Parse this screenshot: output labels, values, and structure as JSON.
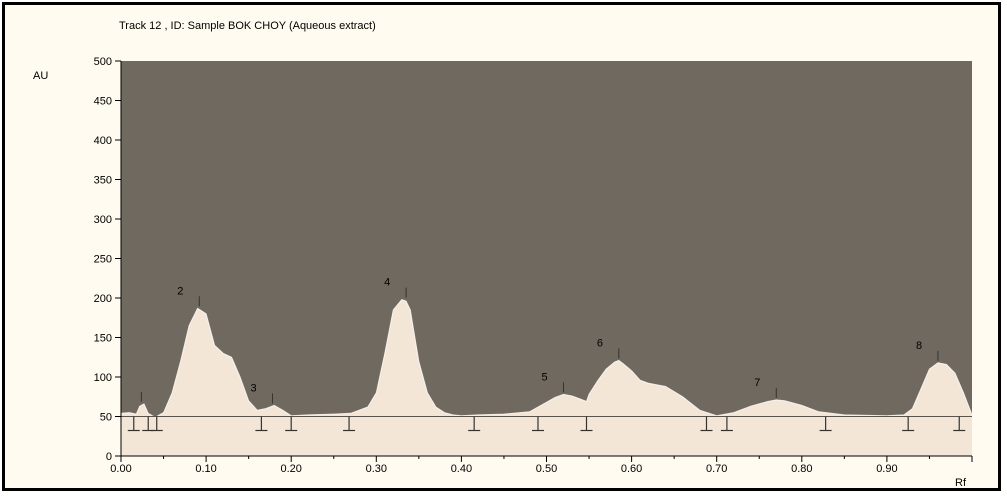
{
  "chart_data": {
    "type": "area",
    "title": "Track  12 , ID: Sample BOK CHOY (Aqueous extract)",
    "ylabel": "AU",
    "xlabel": "Rf",
    "xlim": [
      0.0,
      1.0
    ],
    "ylim": [
      0,
      500
    ],
    "x_ticks": [
      "0.00",
      "0.10",
      "0.20",
      "0.30",
      "0.40",
      "0.50",
      "0.60",
      "0.70",
      "0.80",
      "0.90"
    ],
    "x_tick_values": [
      0.0,
      0.1,
      0.2,
      0.3,
      0.4,
      0.5,
      0.6,
      0.7,
      0.8,
      0.9
    ],
    "y_ticks": [
      "0",
      "50",
      "100",
      "150",
      "200",
      "250",
      "300",
      "350",
      "400",
      "450",
      "500"
    ],
    "y_tick_values": [
      0,
      50,
      100,
      150,
      200,
      250,
      300,
      350,
      400,
      450,
      500
    ],
    "baseline": 50,
    "grid": false,
    "colors": {
      "plot_background": "#706960",
      "curve_fill": "#f3e6d7",
      "frame_background": "#fffbf0",
      "border": "#000000"
    },
    "series": [
      {
        "x": [
          0.0,
          0.01,
          0.018,
          0.022,
          0.027,
          0.032,
          0.04,
          0.05,
          0.06,
          0.07,
          0.08,
          0.09,
          0.1,
          0.11,
          0.12,
          0.13,
          0.14,
          0.15,
          0.16,
          0.17,
          0.18,
          0.19,
          0.2,
          0.22,
          0.25,
          0.27,
          0.29,
          0.3,
          0.31,
          0.32,
          0.33,
          0.335,
          0.34,
          0.35,
          0.36,
          0.37,
          0.38,
          0.39,
          0.4,
          0.42,
          0.45,
          0.48,
          0.5,
          0.51,
          0.52,
          0.53,
          0.54,
          0.547,
          0.55,
          0.56,
          0.57,
          0.58,
          0.585,
          0.59,
          0.6,
          0.61,
          0.62,
          0.64,
          0.66,
          0.68,
          0.7,
          0.72,
          0.74,
          0.76,
          0.77,
          0.78,
          0.8,
          0.82,
          0.85,
          0.9,
          0.92,
          0.93,
          0.94,
          0.95,
          0.96,
          0.97,
          0.98,
          0.99,
          1.0
        ],
        "y": [
          54,
          55,
          53,
          63,
          66,
          54,
          49,
          55,
          80,
          120,
          165,
          187,
          180,
          140,
          130,
          125,
          100,
          70,
          58,
          60,
          64,
          58,
          51,
          52,
          53,
          54,
          62,
          80,
          130,
          185,
          198,
          196,
          185,
          120,
          80,
          62,
          55,
          52,
          51,
          52,
          53,
          56,
          68,
          74,
          78,
          76,
          72,
          69,
          78,
          95,
          110,
          119,
          121,
          117,
          108,
          96,
          92,
          88,
          75,
          58,
          51,
          55,
          63,
          69,
          71,
          70,
          64,
          56,
          52,
          51,
          52,
          60,
          85,
          110,
          118,
          116,
          105,
          80,
          52
        ]
      }
    ],
    "peaks": [
      {
        "label": "2",
        "x": 0.092,
        "y": 187
      },
      {
        "label": "3",
        "x": 0.178,
        "y": 64
      },
      {
        "label": "4",
        "x": 0.335,
        "y": 198
      },
      {
        "label": "5",
        "x": 0.52,
        "y": 78
      },
      {
        "label": "6",
        "x": 0.585,
        "y": 121
      },
      {
        "label": "7",
        "x": 0.77,
        "y": 71
      },
      {
        "label": "8",
        "x": 0.96,
        "y": 118
      }
    ],
    "small_peak_markers": [
      {
        "x": 0.024,
        "y": 66
      }
    ],
    "integration_marks": [
      0.015,
      0.032,
      0.042,
      0.165,
      0.2,
      0.268,
      0.415,
      0.49,
      0.547,
      0.688,
      0.712,
      0.828,
      0.925,
      0.985
    ]
  }
}
